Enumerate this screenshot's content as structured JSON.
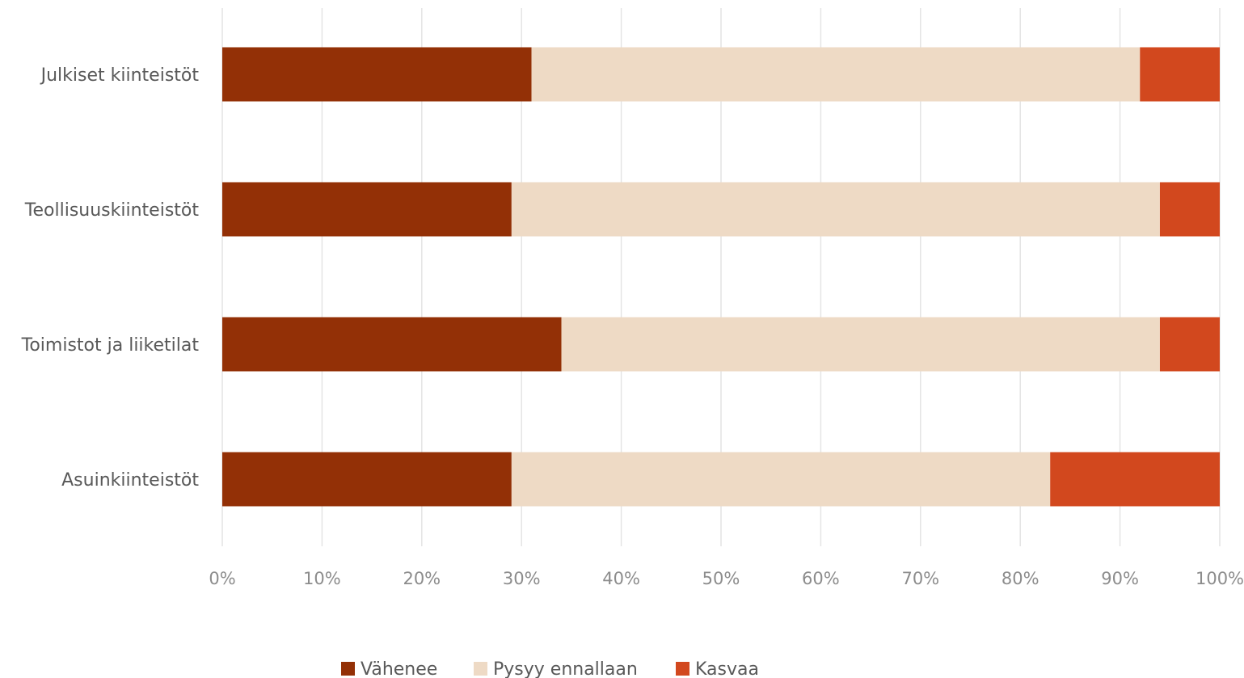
{
  "chart_data": {
    "type": "bar",
    "orientation": "horizontal",
    "stacked": true,
    "categories": [
      "Julkiset kiinteistöt",
      "Teollisuuskiinteistöt",
      "Toimistot ja liiketilat",
      "Asuinkiinteistöt"
    ],
    "series": [
      {
        "name": "Vähenee",
        "color": "#933006",
        "values": [
          31,
          29,
          34,
          29
        ]
      },
      {
        "name": "Pysyy ennallaan",
        "color": "#EEDAC5",
        "values": [
          61,
          65,
          60,
          54
        ]
      },
      {
        "name": "Kasvaa",
        "color": "#D2481E",
        "values": [
          8,
          6,
          6,
          17
        ]
      }
    ],
    "xlim": [
      0,
      100
    ],
    "x_ticks": [
      "0%",
      "10%",
      "20%",
      "30%",
      "40%",
      "50%",
      "60%",
      "70%",
      "80%",
      "90%",
      "100%"
    ],
    "grid": true,
    "grid_color": "#e4e4e4",
    "legend_position": "bottom",
    "title": "",
    "xlabel": "",
    "ylabel": ""
  }
}
